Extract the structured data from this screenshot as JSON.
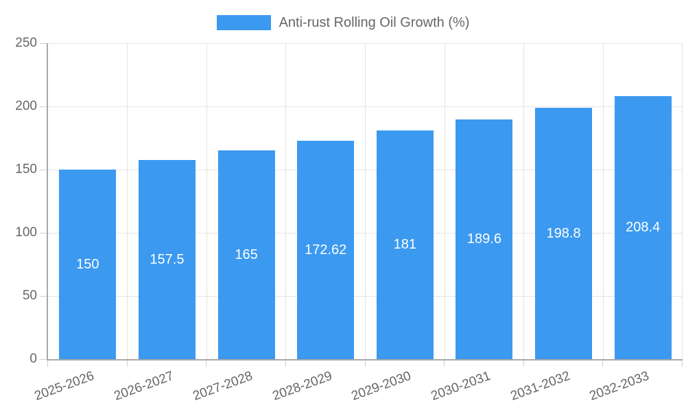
{
  "chart_data": {
    "type": "bar",
    "title": "",
    "categories": [
      "2025-2026",
      "2026-2027",
      "2027-2028",
      "2028-2029",
      "2029-2030",
      "2030-2031",
      "2031-2032",
      "2032-2033"
    ],
    "series": [
      {
        "name": "Anti-rust Rolling Oil Growth (%)",
        "values": [
          150,
          157.5,
          165,
          172.62,
          181,
          189.6,
          198.8,
          208.4
        ],
        "color": "#3b99f0"
      }
    ],
    "value_labels": [
      "150",
      "157.5",
      "165",
      "172.62",
      "181",
      "189.6",
      "198.8",
      "208.4"
    ],
    "xlabel": "",
    "ylabel": "",
    "ylim": [
      0,
      250
    ],
    "yticks": [
      0,
      50,
      100,
      150,
      200,
      250
    ],
    "grid": true,
    "legend_position": "top",
    "value_label_position": "inside-center",
    "colors": {
      "bar": "#3b99f0",
      "value_label": "#ffffff",
      "axis_text": "#666666",
      "grid_line": "#e3e3e3",
      "tick_line": "#cfcfcf",
      "axis_line": "#a8a8a8",
      "background": "#ffffff"
    }
  }
}
